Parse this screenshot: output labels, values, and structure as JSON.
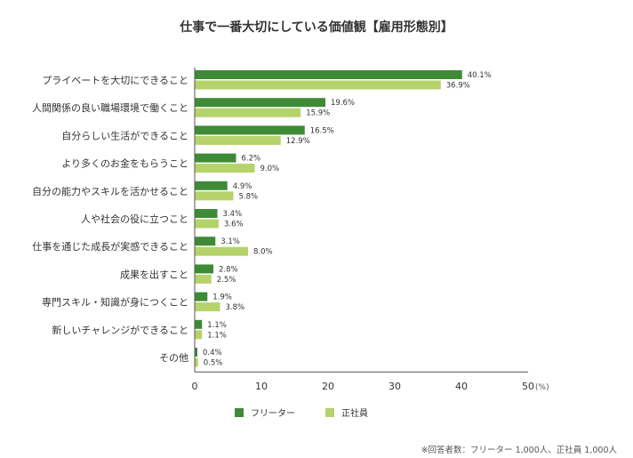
{
  "chart_data": {
    "type": "bar",
    "orientation": "horizontal",
    "title": "仕事で一番大切にしている価値観【雇用形態別】",
    "categories": [
      "プライベートを大切にできること",
      "人間関係の良い職場環境で働くこと",
      "自分らしい生活ができること",
      "より多くのお金をもらうこと",
      "自分の能力やスキルを活かせること",
      "人や社会の役に立つこと",
      "仕事を通じた成長が実感できること",
      "成果を出すこと",
      "専門スキル・知識が身につくこと",
      "新しいチャレンジができること",
      "その他"
    ],
    "series": [
      {
        "name": "フリーター",
        "color": "#3e8a37",
        "values": [
          40.1,
          19.6,
          16.5,
          6.2,
          4.9,
          3.4,
          3.1,
          2.8,
          1.9,
          1.1,
          0.4
        ]
      },
      {
        "name": "正社員",
        "color": "#b5d36b",
        "values": [
          36.9,
          15.9,
          12.9,
          9.0,
          5.8,
          3.6,
          8.0,
          2.5,
          3.8,
          1.1,
          0.5
        ]
      }
    ],
    "xlim": [
      0,
      50
    ],
    "xticks": [
      "0",
      "10",
      "20",
      "30",
      "40",
      "50"
    ],
    "xunit": "(%)",
    "grid": false,
    "legend": "bottom",
    "note": "※回答者数：フリーター 1,000人、正社員 1,000人"
  }
}
